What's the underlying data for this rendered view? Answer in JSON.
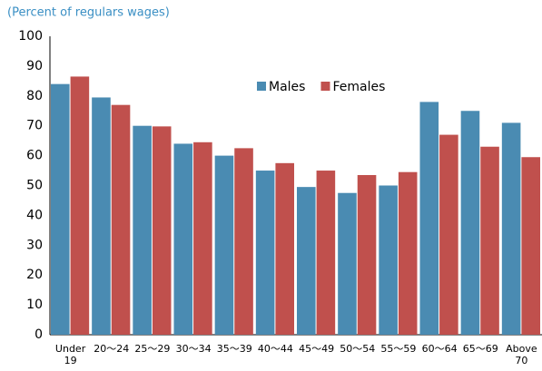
{
  "chart_data": {
    "type": "bar",
    "subtitle": "(Percent of regulars wages)",
    "categories": [
      "Under 19",
      "20〜24",
      "25〜29",
      "30〜34",
      "35〜39",
      "40〜44",
      "45〜49",
      "50〜54",
      "55〜59",
      "60〜64",
      "65〜69",
      "Above 70"
    ],
    "series": [
      {
        "name": "Males",
        "color": "#4a8bb2",
        "values": [
          84,
          79.5,
          70,
          64,
          60,
          55,
          49.5,
          47.5,
          50,
          78,
          75,
          71
        ]
      },
      {
        "name": "Females",
        "color": "#c0504d",
        "values": [
          86.5,
          77,
          69.8,
          64.5,
          62.5,
          57.5,
          55,
          53.5,
          54.5,
          67,
          63,
          59.5
        ]
      }
    ],
    "ylim": [
      0,
      100
    ],
    "yticks": [
      0,
      10,
      20,
      30,
      40,
      50,
      60,
      70,
      80,
      90,
      100
    ]
  }
}
